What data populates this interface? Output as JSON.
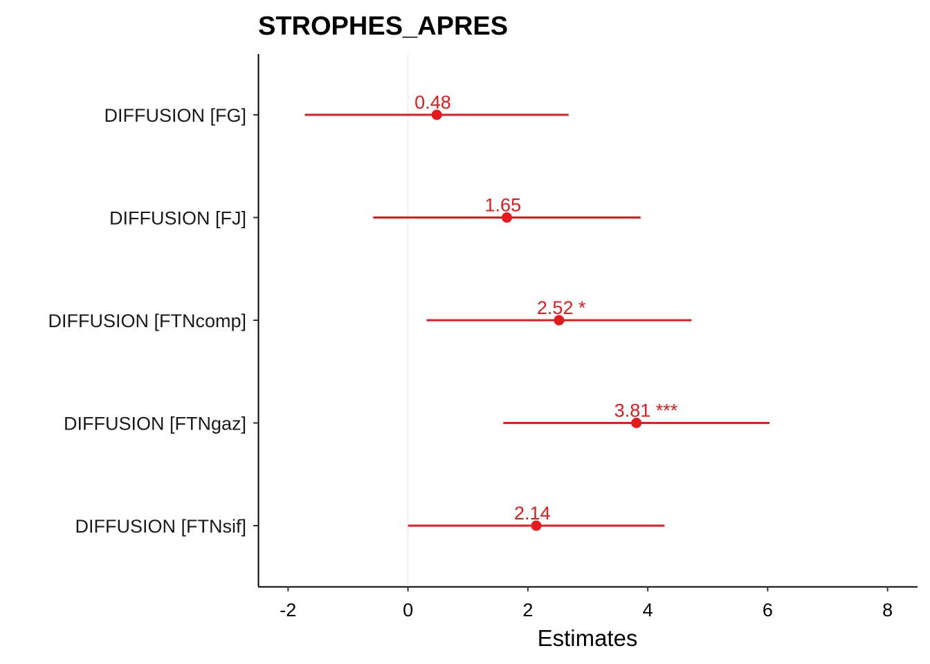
{
  "chart_data": {
    "type": "scatter",
    "subtype": "forest-plot",
    "title": "STROPHES_APRES",
    "xlabel": "Estimates",
    "ylabel": "",
    "xlim": [
      -2.5,
      8.5
    ],
    "xticks": [
      -2,
      0,
      2,
      4,
      6,
      8
    ],
    "reference_line_x": 0,
    "grid": false,
    "color": "#e41a1c",
    "categories": [
      "DIFFUSION [FG]",
      "DIFFUSION [FJ]",
      "DIFFUSION [FTNcomp]",
      "DIFFUSION [FTNgaz]",
      "DIFFUSION [FTNsif]"
    ],
    "estimates": [
      0.48,
      1.65,
      2.52,
      3.81,
      2.14
    ],
    "ci_low": [
      -1.72,
      -0.58,
      0.31,
      1.59,
      0.0
    ],
    "ci_high": [
      2.68,
      3.88,
      4.73,
      6.03,
      4.28
    ],
    "labels": [
      "0.48",
      "1.65",
      "2.52 *",
      "3.81 ***",
      "2.14"
    ]
  }
}
